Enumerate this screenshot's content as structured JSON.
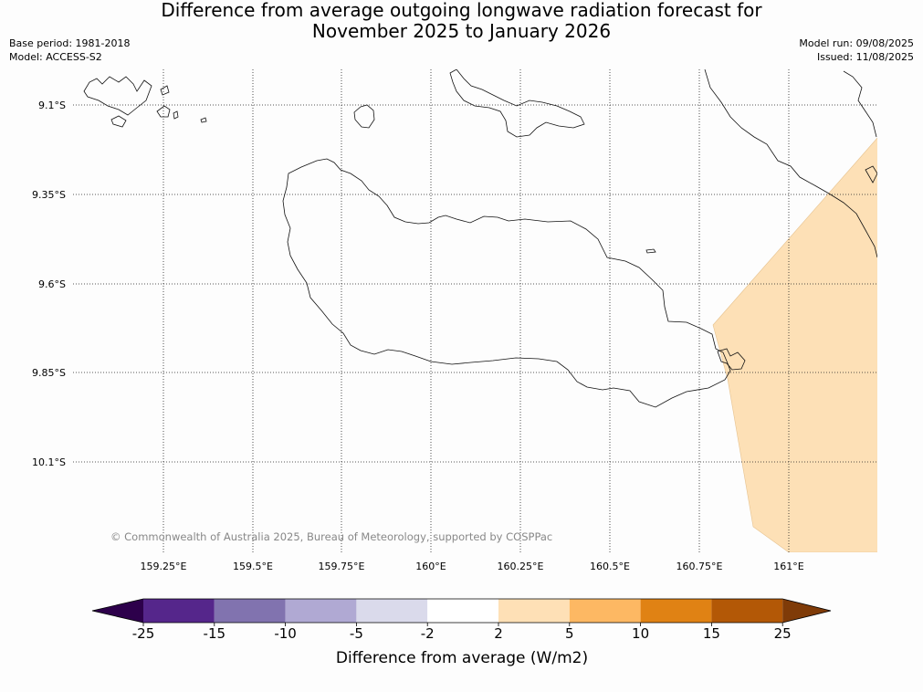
{
  "title": {
    "line1": "Difference from average outgoing longwave radiation forecast for",
    "line2": "November 2025 to January 2026"
  },
  "meta": {
    "base_period": "Base period: 1981-2018",
    "model": "Model: ACCESS-S2",
    "model_run": "Model run: 09/08/2025",
    "issued": "Issued: 11/08/2025"
  },
  "map": {
    "latitude_labels": [
      "9.1°S",
      "9.35°S",
      "9.6°S",
      "9.85°S",
      "10.1°S"
    ],
    "longitude_labels": [
      "159.25°E",
      "159.5°E",
      "159.75°E",
      "160°E",
      "160.25°E",
      "160.5°E",
      "160.75°E",
      "161°E"
    ],
    "copyright": "© Commonwealth of Australia 2025, Bureau of Meteorology, supported by COSPPac",
    "shaded_region": {
      "category": "2 to 5",
      "color": "#fde0b6"
    }
  },
  "colorbar": {
    "title": "Difference from average (W/m2)",
    "ticks": [
      "-25",
      "-15",
      "-10",
      "-5",
      "-2",
      "2",
      "5",
      "10",
      "15",
      "25"
    ],
    "colors": [
      "#55268b",
      "#8173af",
      "#b0a9d3",
      "#dadaeb",
      "#ffffff",
      "#fee0b6",
      "#fdb863",
      "#e08214",
      "#b35806"
    ],
    "extend_low_color": "#2d004b",
    "extend_high_color": "#7f3b08"
  }
}
